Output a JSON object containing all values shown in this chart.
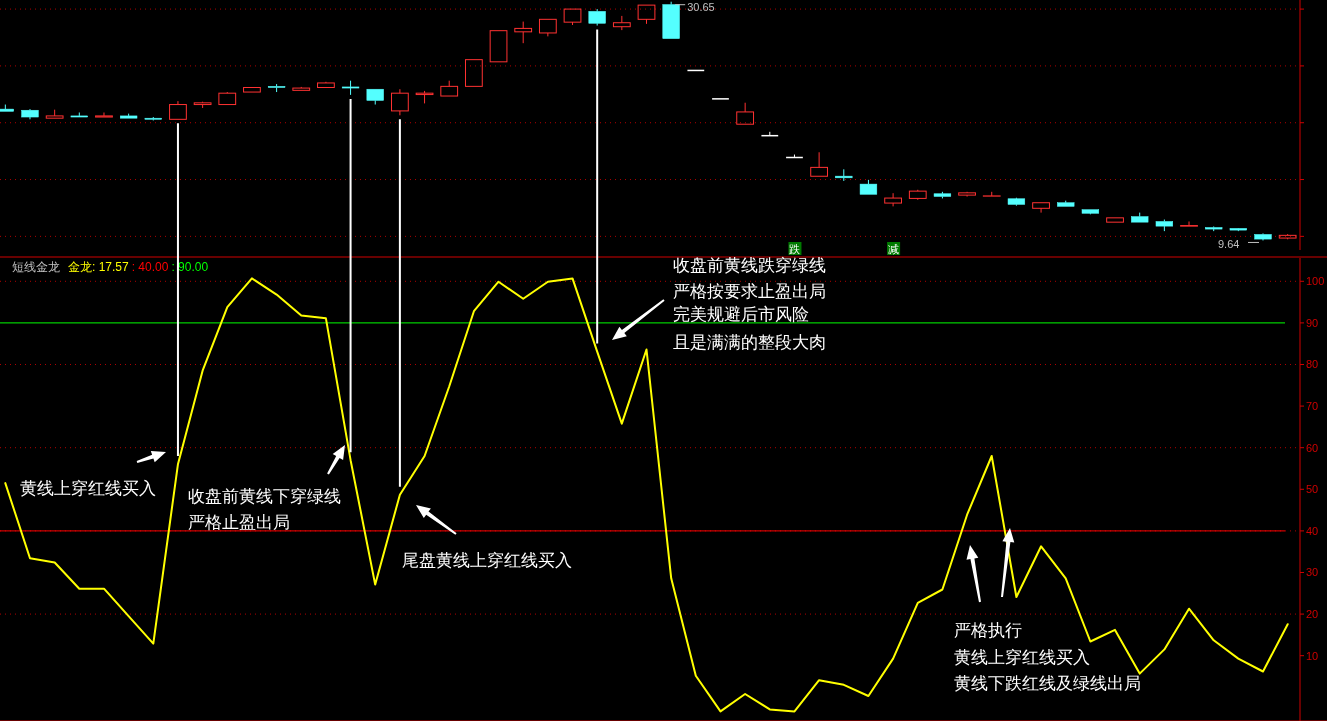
{
  "chart_data": [
    {
      "type": "candlestick",
      "categories": [
        null,
        null,
        null,
        null,
        null,
        null,
        null,
        null,
        null,
        null,
        null,
        null,
        null,
        null,
        null,
        null,
        null,
        null,
        null,
        null,
        null,
        null,
        null,
        null,
        null,
        null,
        null,
        null,
        null,
        null,
        null,
        null,
        null,
        null,
        null,
        null,
        null,
        null,
        null,
        null,
        null,
        null,
        null,
        null,
        null,
        null,
        null,
        null,
        null,
        null,
        null,
        null,
        null
      ],
      "ohlc": [
        [
          21.2,
          21.6,
          21.0,
          21.0
        ],
        [
          21.1,
          21.2,
          20.3,
          20.5
        ],
        [
          20.4,
          21.15,
          20.4,
          20.6
        ],
        [
          20.6,
          20.9,
          20.5,
          20.5
        ],
        [
          20.5,
          20.9,
          20.5,
          20.6
        ],
        [
          20.6,
          20.8,
          20.4,
          20.4
        ],
        [
          20.4,
          20.5,
          20.2,
          20.3
        ],
        [
          20.3,
          21.9,
          20.3,
          21.6
        ],
        [
          21.6,
          21.85,
          21.3,
          21.75
        ],
        [
          21.6,
          22.7,
          21.6,
          22.6
        ],
        [
          22.7,
          23.1,
          22.7,
          23.1
        ],
        [
          23.2,
          23.4,
          22.7,
          23.1
        ],
        [
          22.85,
          23.15,
          22.85,
          23.05
        ],
        [
          23.1,
          23.6,
          23.1,
          23.5
        ],
        [
          23.15,
          23.7,
          22.45,
          23.05
        ],
        [
          22.95,
          22.95,
          21.6,
          21.96
        ],
        [
          21.04,
          22.95,
          20.65,
          22.6
        ],
        [
          22.48,
          22.8,
          21.7,
          22.6
        ],
        [
          22.35,
          23.7,
          22.35,
          23.2
        ],
        [
          23.2,
          25.55,
          23.2,
          25.55
        ],
        [
          25.36,
          28.1,
          25.36,
          28.1
        ],
        [
          28.0,
          28.9,
          27.0,
          28.3
        ],
        [
          27.9,
          29.1,
          27.6,
          29.1
        ],
        [
          28.85,
          30.0,
          28.6,
          30.0
        ],
        [
          29.8,
          30.0,
          28.55,
          28.75
        ],
        [
          28.45,
          29.4,
          28.15,
          28.8
        ],
        [
          29.1,
          30.35,
          28.7,
          30.35
        ],
        [
          30.4,
          30.65,
          27.4,
          27.4
        ],
        [
          24.6,
          24.6,
          24.6,
          24.6
        ],
        [
          22.1,
          22.1,
          22.1,
          22.1
        ],
        [
          19.87,
          21.76,
          19.87,
          20.95
        ],
        [
          18.86,
          19.2,
          18.86,
          18.86
        ],
        [
          16.94,
          17.2,
          16.94,
          16.94
        ],
        [
          15.29,
          17.4,
          15.29,
          16.07
        ],
        [
          15.3,
          15.9,
          14.88,
          15.15
        ],
        [
          14.6,
          14.97,
          13.7,
          13.7
        ],
        [
          12.93,
          13.8,
          12.64,
          13.37
        ],
        [
          13.34,
          14.1,
          13.22,
          13.98
        ],
        [
          13.75,
          13.92,
          13.34,
          13.51
        ],
        [
          13.63,
          13.92,
          13.5,
          13.83
        ],
        [
          13.54,
          13.92,
          13.54,
          13.56
        ],
        [
          13.31,
          13.4,
          12.7,
          12.81
        ],
        [
          12.47,
          12.96,
          12.09,
          12.96
        ],
        [
          12.96,
          13.14,
          12.64,
          12.64
        ],
        [
          12.35,
          12.35,
          11.94,
          12.03
        ],
        [
          11.25,
          11.63,
          11.25,
          11.63
        ],
        [
          11.74,
          12.09,
          11.25,
          11.25
        ],
        [
          11.31,
          11.48,
          10.46,
          10.9
        ],
        [
          10.9,
          11.31,
          10.9,
          10.95
        ],
        [
          10.78,
          10.87,
          10.46,
          10.64
        ],
        [
          10.7,
          10.73,
          10.46,
          10.55
        ],
        [
          10.17,
          10.26,
          9.64,
          9.76
        ],
        [
          9.85,
          10.2,
          9.74,
          10.09
        ]
      ],
      "colors": [
        "#54ffff",
        "#54ffff",
        "#ff3232",
        "#54ffff",
        "#ff3232",
        "#54ffff",
        "#54ffff",
        "#ff3232",
        "#ff3232",
        "#ff3232",
        "#ff3232",
        "#54ffff",
        "#ff3232",
        "#ff3232",
        "#54ffff",
        "#54ffff",
        "#ff3232",
        "#ff3232",
        "#ff3232",
        "#ff3232",
        "#ff3232",
        "#ff3232",
        "#ff3232",
        "#ff3232",
        "#54ffff",
        "#ff3232",
        "#ff3232",
        "#54ffff",
        "#ffffff",
        "#ffffff",
        "#ff3232",
        "#ffffff",
        "#ffffff",
        "#ff3232",
        "#54ffff",
        "#54ffff",
        "#ff3232",
        "#ff3232",
        "#54ffff",
        "#ff3232",
        "#ff3232",
        "#54ffff",
        "#ff3232",
        "#54ffff",
        "#54ffff",
        "#ff3232",
        "#54ffff",
        "#54ffff",
        "#ff3232",
        "#54ffff",
        "#54ffff",
        "#54ffff",
        "#ff3232"
      ],
      "ylim": [
        8.8,
        30.8
      ],
      "yticks": [
        {
          "value": 10,
          "label": null
        },
        {
          "value": 15,
          "label": null
        },
        {
          "value": 20,
          "label": null
        },
        {
          "value": 25,
          "label": null
        },
        {
          "value": 30,
          "label": null
        }
      ],
      "grid": "y",
      "annotations": [
        "30.65",
        "9.64",
        "跌",
        "减"
      ]
    },
    {
      "type": "line",
      "title": "短线金龙",
      "categories": [
        null,
        null,
        null,
        null,
        null,
        null,
        null,
        null,
        null,
        null,
        null,
        null,
        null,
        null,
        null,
        null,
        null,
        null,
        null,
        null,
        null,
        null,
        null,
        null,
        null,
        null,
        null,
        null,
        null,
        null,
        null,
        null,
        null,
        null,
        null,
        null,
        null,
        null,
        null,
        null,
        null,
        null,
        null,
        null,
        null,
        null,
        null,
        null,
        null,
        null,
        null,
        null,
        null
      ],
      "series": [
        {
          "name": "金龙",
          "color": "#ffff00",
          "values": [
            51.5,
            33.4,
            32.4,
            26.1,
            26.1,
            19.5,
            12.9,
            56.1,
            78.5,
            93.8,
            100.7,
            96.8,
            91.8,
            91.1,
            57,
            27.1,
            48.7,
            58.0,
            74.7,
            92.8,
            99.9,
            95.8,
            99.9,
            100.7,
            83.1,
            65.8,
            83.6,
            28.6,
            5.2,
            -3.4,
            0.8,
            -2.9,
            -3.4,
            4.1,
            3.0,
            0.3,
            9.3,
            22.7,
            25.9,
            43.9,
            58.0,
            24.1,
            36.3,
            28.6,
            13.4,
            16.2,
            5.7,
            11.5,
            21.3,
            13.7,
            9.3,
            6.2,
            17.57
          ]
        }
      ],
      "ylim": [
        -5.7,
        105.6
      ],
      "yticks": [
        10,
        20,
        30,
        40,
        50,
        60,
        70,
        80,
        90,
        100
      ],
      "grid": "y",
      "marker": "none",
      "line_style": "solid",
      "ref_lines": [
        {
          "axis": "y",
          "value": 40,
          "label": ": 40.00",
          "color": "#ff0000"
        },
        {
          "axis": "y",
          "value": 90,
          "label": ": 90.00",
          "color": "#00ff00"
        }
      ],
      "annotations": [
        ": 17.57",
        "黄线上穿红线买入",
        "收盘前黄线下穿绿线",
        "严格止盈出局",
        "尾盘黄线上穿红线买入",
        "收盘前黄线跌穿绿线",
        "严格按要求止盈出局",
        "完美规避后市风险",
        "且是满满的整段大肉",
        "严格执行",
        "黄线上穿红线买入",
        "黄线下跌红线及绿线出局"
      ]
    }
  ]
}
